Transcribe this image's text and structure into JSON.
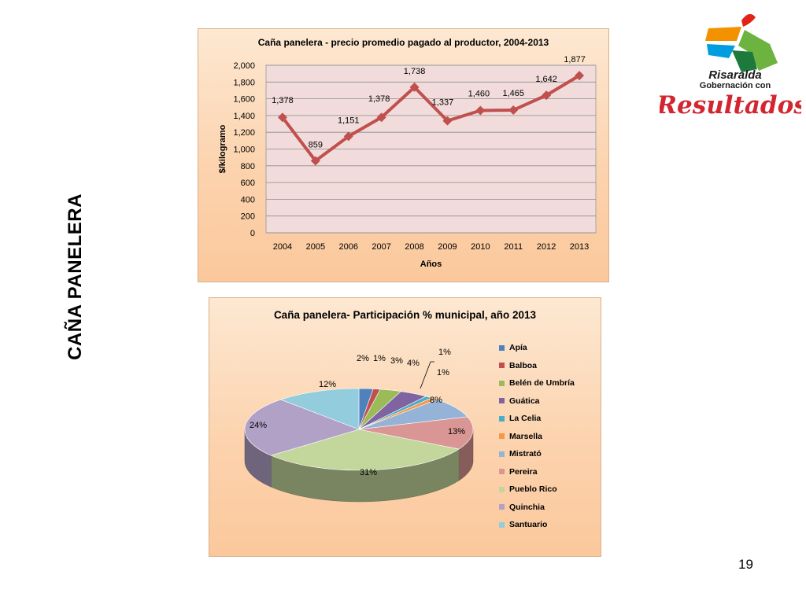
{
  "slide": {
    "side_title": "CAÑA PANELERA",
    "page_number": "19"
  },
  "logo": {
    "name_line": "Risaralda",
    "sub_line": "Gobernación con",
    "script_line": "Resultados",
    "colors": [
      "#e2231a",
      "#f39200",
      "#6cb33f",
      "#009ee0",
      "#1d7a3c"
    ]
  },
  "chart_data": [
    {
      "type": "line",
      "title": "Caña  panelera - precio promedio pagado al productor, 2004-2013",
      "xlabel": "Años",
      "ylabel": "$/kilogramo",
      "categories": [
        "2004",
        "2005",
        "2006",
        "2007",
        "2008",
        "2009",
        "2010",
        "2011",
        "2012",
        "2013"
      ],
      "values": [
        1378,
        859,
        1151,
        1378,
        1738,
        1337,
        1460,
        1465,
        1642,
        1877
      ],
      "data_labels": [
        "1,378",
        "859",
        "1,151",
        "1,378",
        "1,738",
        "1,337",
        "1,460",
        "1,465",
        "1,642",
        "1,877"
      ],
      "ylim": [
        0,
        2000
      ],
      "yticks": [
        0,
        200,
        400,
        600,
        800,
        1000,
        1200,
        1400,
        1600,
        1800,
        2000
      ],
      "ytick_labels": [
        "0",
        "200",
        "400",
        "600",
        "800",
        "1,000",
        "1,200",
        "1,400",
        "1,600",
        "1,800",
        "2,000"
      ],
      "grid": true,
      "legend": "none",
      "color": "#c0504d"
    },
    {
      "type": "pie",
      "title": "Caña panelera- Participación % municipal, año 2013",
      "labels": [
        "Apía",
        "Balboa",
        "Belén de Umbría",
        "Guática",
        "La Celia",
        "Marsella",
        "Mistrató",
        "Pereira",
        "Pueblo Rico",
        "Quinchia",
        "Santuario"
      ],
      "values": [
        2,
        1,
        3,
        4,
        1,
        1,
        8,
        13,
        31,
        24,
        12
      ],
      "data_labels": [
        "2%",
        "1%",
        "3%",
        "4%",
        "1%",
        "1%",
        "8%",
        "13%",
        "31%",
        "24%",
        "12%"
      ],
      "colors": [
        "#4f81bd",
        "#c0504d",
        "#9bbb59",
        "#8064a2",
        "#4bacc6",
        "#f79646",
        "#95b3d7",
        "#d99694",
        "#c3d69b",
        "#b2a1c7",
        "#93cddd"
      ],
      "legend": "right",
      "style": "3d"
    }
  ]
}
